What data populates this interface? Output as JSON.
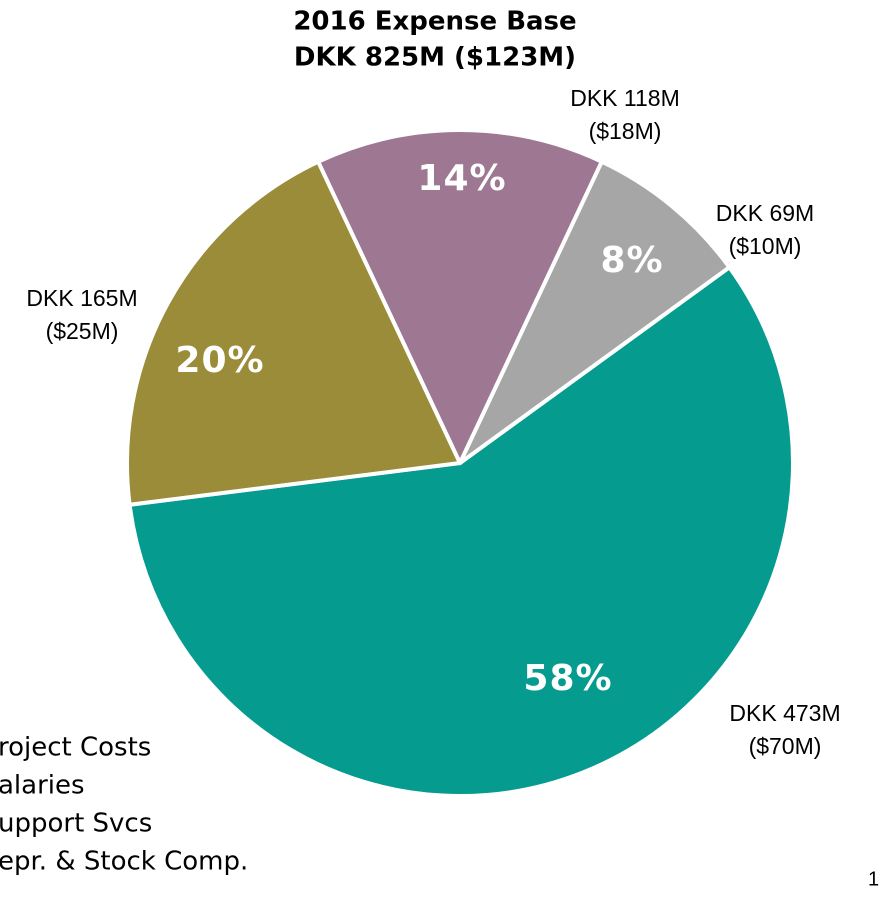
{
  "chart_data": {
    "type": "pie",
    "title": [
      "2016 Expense Base",
      "DKK 825M ($123M)"
    ],
    "categories": [
      "roject Costs",
      "alaries",
      "upport Svcs",
      "epr. & Stock Comp."
    ],
    "values": [
      58,
      20,
      14,
      8
    ],
    "value_labels": [
      "58%",
      "20%",
      "14%",
      "8%"
    ],
    "annotations": [
      [
        "DKK 473M",
        "($70M)"
      ],
      [
        "DKK 165M",
        "($25M)"
      ],
      [
        "DKK 118M",
        "($18M)"
      ],
      [
        "DKK 69M",
        "($10M)"
      ]
    ],
    "colors": [
      "#069b8f",
      "#9a8c38",
      "#9e7793",
      "#a6a6a6"
    ]
  },
  "page_number": "1"
}
